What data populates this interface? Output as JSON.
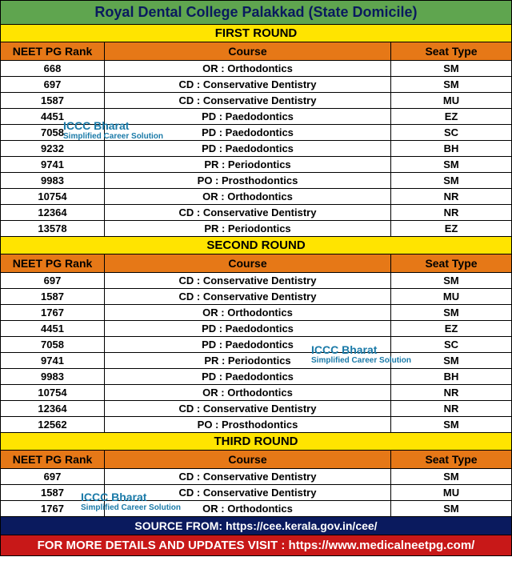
{
  "title": "Royal Dental College Palakkad (State Domicile)",
  "columns": {
    "rank": "NEET PG Rank",
    "course": "Course",
    "seat": "Seat Type"
  },
  "rounds": [
    {
      "label": "FIRST ROUND",
      "rows": [
        {
          "r": "668",
          "c": "OR : Orthodontics",
          "s": "SM"
        },
        {
          "r": "697",
          "c": "CD : Conservative Dentistry",
          "s": "SM"
        },
        {
          "r": "1587",
          "c": "CD : Conservative Dentistry",
          "s": "MU"
        },
        {
          "r": "4451",
          "c": "PD : Paedodontics",
          "s": "EZ"
        },
        {
          "r": "7058",
          "c": "PD : Paedodontics",
          "s": "SC"
        },
        {
          "r": "9232",
          "c": "PD : Paedodontics",
          "s": "BH"
        },
        {
          "r": "9741",
          "c": "PR : Periodontics",
          "s": "SM"
        },
        {
          "r": "9983",
          "c": "PO : Prosthodontics",
          "s": "SM"
        },
        {
          "r": "10754",
          "c": "OR : Orthodontics",
          "s": "NR"
        },
        {
          "r": "12364",
          "c": "CD : Conservative Dentistry",
          "s": "NR"
        },
        {
          "r": "13578",
          "c": "PR : Periodontics",
          "s": "EZ"
        }
      ]
    },
    {
      "label": "SECOND ROUND",
      "rows": [
        {
          "r": "697",
          "c": "CD : Conservative Dentistry",
          "s": "SM"
        },
        {
          "r": "1587",
          "c": "CD : Conservative Dentistry",
          "s": "MU"
        },
        {
          "r": "1767",
          "c": "OR : Orthodontics",
          "s": "SM"
        },
        {
          "r": "4451",
          "c": "PD : Paedodontics",
          "s": "EZ"
        },
        {
          "r": "7058",
          "c": "PD : Paedodontics",
          "s": "SC"
        },
        {
          "r": "9741",
          "c": "PR : Periodontics",
          "s": "SM"
        },
        {
          "r": "9983",
          "c": "PD : Paedodontics",
          "s": "BH"
        },
        {
          "r": "10754",
          "c": "OR : Orthodontics",
          "s": "NR"
        },
        {
          "r": "12364",
          "c": "CD : Conservative Dentistry",
          "s": "NR"
        },
        {
          "r": "12562",
          "c": "PO : Prosthodontics",
          "s": "SM"
        }
      ]
    },
    {
      "label": "THIRD ROUND",
      "rows": [
        {
          "r": "697",
          "c": "CD : Conservative Dentistry",
          "s": "SM"
        },
        {
          "r": "1587",
          "c": "CD : Conservative Dentistry",
          "s": "MU"
        },
        {
          "r": "1767",
          "c": "OR : Orthodontics",
          "s": "SM"
        }
      ]
    }
  ],
  "source": "SOURCE FROM: https://cee.kerala.gov.in/cee/",
  "footer": "FOR MORE DETAILS AND UPDATES VISIT : https://www.medicalneetpg.com/",
  "watermark": {
    "brand": "ICCC Bharat",
    "tag": "Simplified Career Solution"
  },
  "colors": {
    "title_bg": "#5fa54f",
    "round_bg": "#ffe400",
    "header_bg": "#e67817",
    "source_bg": "#0a1a5e",
    "footer_bg": "#c81818"
  }
}
